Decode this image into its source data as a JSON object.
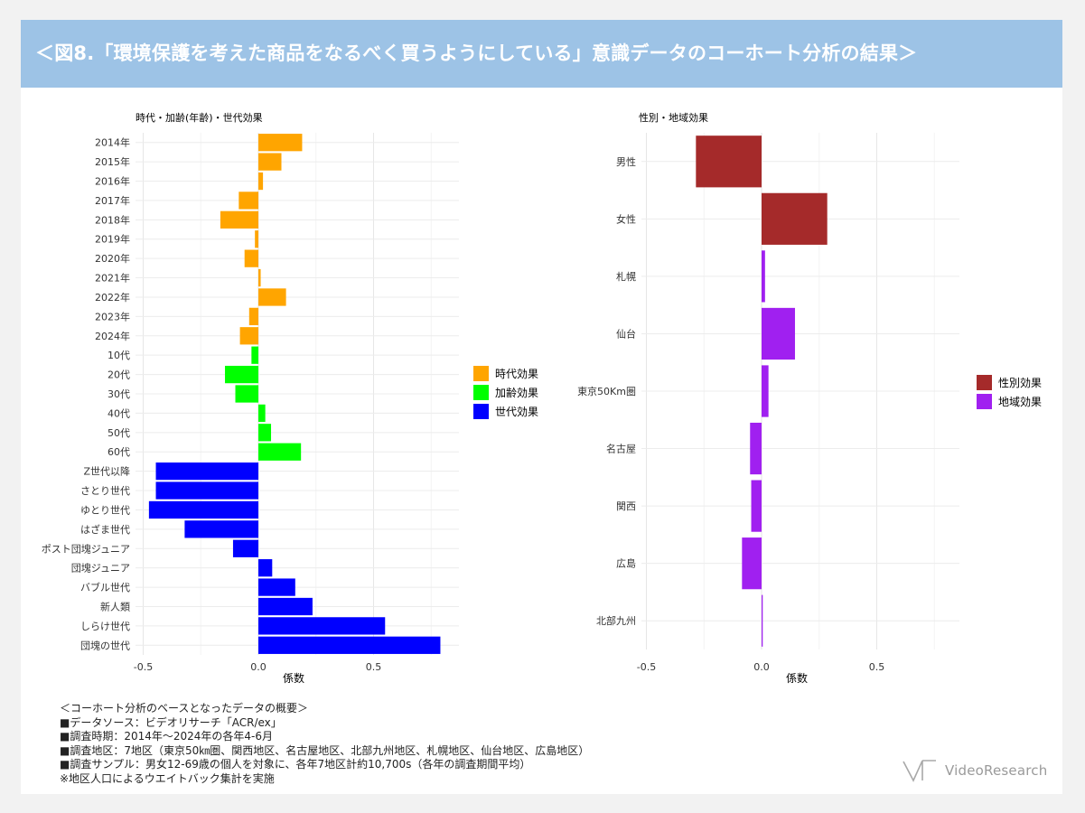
{
  "title": "＜図8.「環境保護を考えた商品をなるべく買うようにしている」意識データのコーホート分析の結果＞",
  "colors": {
    "banner": "#9dc3e6",
    "period": "#ffa500",
    "age": "#00ff00",
    "generation": "#0000ff",
    "gender": "#a52a2a",
    "region": "#a020f0"
  },
  "chart_data": [
    {
      "type": "bar",
      "orientation": "horizontal",
      "title": "時代・加齢(年齢)・世代効果",
      "xlabel": "係数",
      "xlim": [
        -0.5,
        0.8
      ],
      "xticks": [
        -0.5,
        0.0,
        0.5
      ],
      "xtick_labels": [
        "-0.5",
        "0.0",
        "0.5"
      ],
      "legend": [
        "時代効果",
        "加齢効果",
        "世代効果"
      ],
      "categories": [
        "2014年",
        "2015年",
        "2016年",
        "2017年",
        "2018年",
        "2019年",
        "2020年",
        "2021年",
        "2022年",
        "2023年",
        "2024年",
        "10代",
        "20代",
        "30代",
        "40代",
        "50代",
        "60代",
        "Z世代以降",
        "さとり世代",
        "ゆとり世代",
        "はざま世代",
        "ポスト団塊ジュニア",
        "団塊ジュニア",
        "バブル世代",
        "新人類",
        "しらけ世代",
        "団塊の世代"
      ],
      "series_of_category": [
        "時代効果",
        "時代効果",
        "時代効果",
        "時代効果",
        "時代効果",
        "時代効果",
        "時代効果",
        "時代効果",
        "時代効果",
        "時代効果",
        "時代効果",
        "加齢効果",
        "加齢効果",
        "加齢効果",
        "加齢効果",
        "加齢効果",
        "加齢効果",
        "世代効果",
        "世代効果",
        "世代効果",
        "世代効果",
        "世代効果",
        "世代効果",
        "世代効果",
        "世代効果",
        "世代効果",
        "世代効果"
      ],
      "values": [
        0.19,
        0.1,
        0.02,
        -0.085,
        -0.165,
        -0.015,
        -0.06,
        0.01,
        0.12,
        -0.04,
        -0.08,
        -0.03,
        -0.145,
        -0.1,
        0.03,
        0.055,
        0.185,
        -0.445,
        -0.445,
        -0.475,
        -0.32,
        -0.11,
        0.06,
        0.16,
        0.235,
        0.55,
        0.79
      ]
    },
    {
      "type": "bar",
      "orientation": "horizontal",
      "title": "性別・地域効果",
      "xlabel": "係数",
      "xlim": [
        -0.5,
        0.8
      ],
      "xticks": [
        -0.5,
        0.0,
        0.5
      ],
      "xtick_labels": [
        "-0.5",
        "0.0",
        "0.5"
      ],
      "legend": [
        "性別効果",
        "地域効果"
      ],
      "categories": [
        "男性",
        "女性",
        "札幌",
        "仙台",
        "東京50Km圏",
        "名古屋",
        "関西",
        "広島",
        "北部九州"
      ],
      "series_of_category": [
        "性別効果",
        "性別効果",
        "地域効果",
        "地域効果",
        "地域効果",
        "地域効果",
        "地域効果",
        "地域効果",
        "地域効果"
      ],
      "values": [
        -0.285,
        0.285,
        0.015,
        0.145,
        0.03,
        -0.05,
        -0.045,
        -0.085,
        0.005
      ]
    }
  ],
  "notes": [
    "＜コーホート分析のベースとなったデータの概要＞",
    "■データソース：ビデオリサーチ「ACR/ex」",
    "■調査時期：2014年～2024年の各年4-6月",
    "■調査地区：7地区（東京50㎞圏、関西地区、名古屋地区、北部九州地区、札幌地区、仙台地区、広島地区）",
    "■調査サンプル：男女12-69歳の個人を対象に、各年7地区計約10,700s（各年の調査期間平均）",
    "※地区人口によるウエイトバック集計を実施"
  ],
  "logo_text": "VideoResearch"
}
